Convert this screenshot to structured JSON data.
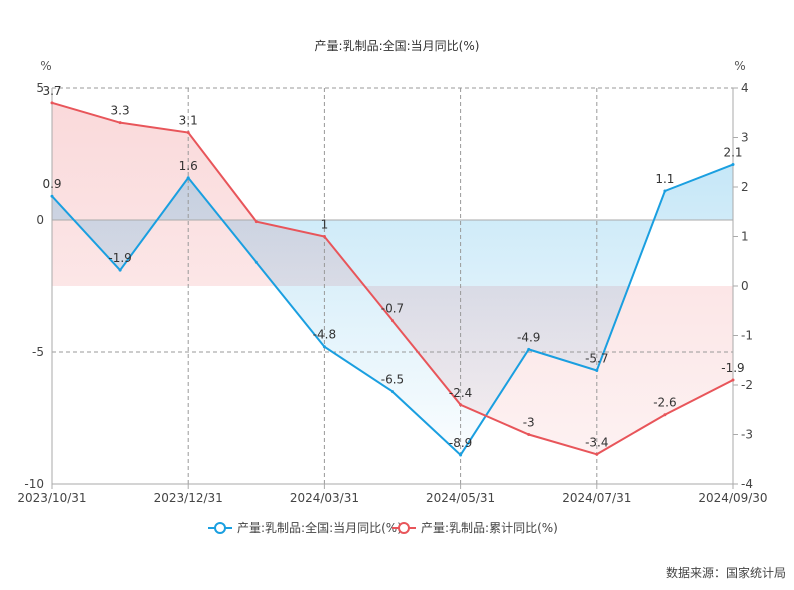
{
  "chart_data": {
    "type": "line",
    "title": "产量:乳制品:全国:当月同比(%)",
    "x_tick_labels": [
      "2023/10/31",
      "2023/12/31",
      "2024/03/31",
      "2024/05/31",
      "2024/07/31",
      "2024/09/30"
    ],
    "left_axis": {
      "unit": "%",
      "ylim": [
        -10,
        5
      ],
      "ticks": [
        5,
        0,
        -5,
        -10
      ]
    },
    "right_axis": {
      "unit": "%",
      "ylim": [
        -4,
        4
      ],
      "ticks": [
        4,
        3,
        2,
        1,
        0,
        -1,
        -2,
        -3,
        -4
      ]
    },
    "series": [
      {
        "name": "产量:乳制品:全国:当月同比(%)",
        "axis": "left",
        "color": "#1a9fe0",
        "values": [
          0.9,
          -1.9,
          1.6,
          -1.6,
          -4.8,
          -6.5,
          -8.9,
          -4.9,
          -5.7,
          1.1,
          2.1
        ],
        "labels": [
          "0.9",
          "-1.9",
          "1.6",
          "",
          "-4.8",
          "-6.5",
          "-8.9",
          "-4.9",
          "-5.7",
          "1.1",
          "2.1"
        ]
      },
      {
        "name": "产量:乳制品:累计同比(%)",
        "axis": "right",
        "color": "#e8555a",
        "values": [
          3.7,
          3.3,
          3.1,
          1.3,
          1.0,
          -0.7,
          -2.4,
          -3.0,
          -3.4,
          -2.6,
          -1.9
        ],
        "labels": [
          "3.7",
          "3.3",
          "3.1",
          "",
          "1",
          "-0.7",
          "-2.4",
          "-3",
          "-3.4",
          "-2.6",
          "-1.9"
        ]
      }
    ],
    "legend": "bottom",
    "grid": true
  },
  "source": "数据来源：国家统计局"
}
